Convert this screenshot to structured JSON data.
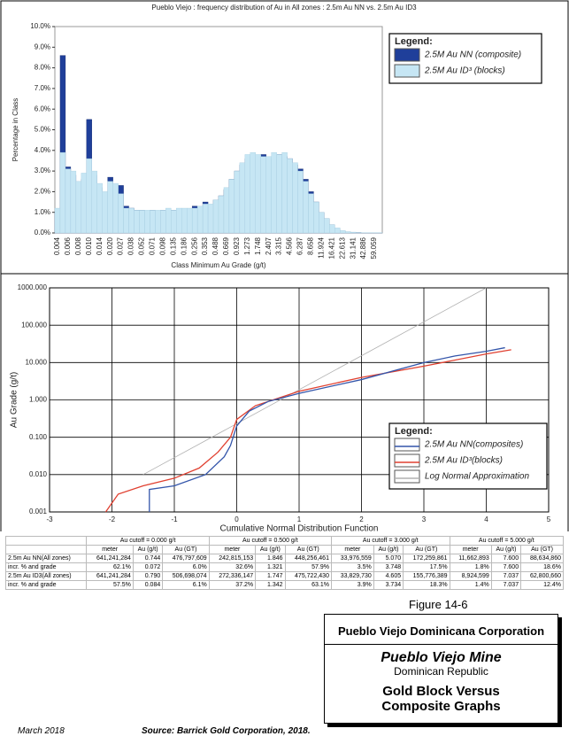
{
  "chart_data": [
    {
      "type": "bar",
      "title": "Pueblo Viejo   :   frequency distribution of Au in All zones   :  2.5m Au NN vs. 2.5m Au ID3",
      "legend_title": "Legend:",
      "x_label": "Class Minimum Au Grade (g/t)",
      "y_label": "Percentage in Class",
      "categories": [
        "0.004",
        null,
        "0.006",
        null,
        "0.008",
        null,
        "0.010",
        null,
        "0.014",
        null,
        "0.020",
        null,
        "0.027",
        null,
        "0.038",
        null,
        "0.052",
        null,
        "0.071",
        null,
        "0.098",
        null,
        "0.135",
        null,
        "0.186",
        null,
        "0.256",
        null,
        "0.353",
        null,
        "0.488",
        null,
        "0.669",
        null,
        "0.923",
        null,
        "1.273",
        null,
        "1.748",
        null,
        "2.407",
        null,
        "3.315",
        null,
        "4.566",
        null,
        "6.287",
        null,
        "8.658",
        null,
        "11.924",
        null,
        "16.421",
        null,
        "22.613",
        null,
        "31.141",
        null,
        "42.886",
        null,
        "59.059",
        null
      ],
      "series": [
        {
          "name": "2.5M Au NN (composite)",
          "color": "#1f3f9a",
          "values": [
            1.0,
            8.6,
            3.2,
            2.8,
            2.3,
            2.6,
            5.5,
            2.8,
            2.2,
            1.8,
            2.7,
            2.0,
            2.3,
            1.3,
            1.2,
            1.1,
            1.1,
            1.0,
            1.1,
            1.0,
            1.1,
            1.1,
            1.1,
            1.1,
            1.1,
            1.1,
            1.3,
            1.2,
            1.5,
            1.3,
            1.6,
            1.8,
            2.1,
            2.6,
            3.0,
            3.3,
            3.6,
            3.7,
            3.5,
            3.8,
            3.4,
            3.6,
            3.8,
            3.7,
            3.6,
            3.3,
            3.1,
            2.6,
            2.0,
            1.5,
            1.0,
            0.7,
            0.4,
            0.2,
            0.1,
            0.05,
            0.03,
            0.02,
            0.01,
            0.01,
            0.01,
            0.01
          ]
        },
        {
          "name": "2.5M Au ID³ (blocks)",
          "color": "#c6e6f4",
          "values": [
            1.2,
            3.9,
            3.1,
            3.0,
            2.5,
            2.9,
            3.6,
            3.0,
            2.4,
            2.0,
            2.5,
            2.4,
            1.9,
            1.2,
            1.2,
            1.1,
            1.1,
            1.1,
            1.1,
            1.1,
            1.1,
            1.2,
            1.1,
            1.2,
            1.2,
            1.2,
            1.2,
            1.3,
            1.4,
            1.4,
            1.6,
            1.8,
            2.2,
            2.6,
            3.0,
            3.4,
            3.8,
            3.9,
            3.8,
            3.7,
            3.7,
            3.9,
            3.8,
            3.9,
            3.6,
            3.4,
            3.0,
            2.5,
            1.9,
            1.5,
            1.0,
            0.7,
            0.4,
            0.25,
            0.12,
            0.06,
            0.04,
            0.02,
            0.01,
            0.01,
            0.01,
            0.01
          ]
        }
      ],
      "ylim": [
        0,
        10
      ],
      "yticks": [
        {
          "value": 0,
          "label": "0.0%"
        },
        {
          "value": 1,
          "label": "1.0%"
        },
        {
          "value": 2,
          "label": "2.0%"
        },
        {
          "value": 3,
          "label": "3.0%"
        },
        {
          "value": 4,
          "label": "4.0%"
        },
        {
          "value": 5,
          "label": "5.0%"
        },
        {
          "value": 6,
          "label": "6.0%"
        },
        {
          "value": 7,
          "label": "7.0%"
        },
        {
          "value": 8,
          "label": "8.0%"
        },
        {
          "value": 9,
          "label": "9.0%"
        },
        {
          "value": 10,
          "label": "10.0%"
        }
      ],
      "legend": "upper right"
    },
    {
      "type": "line",
      "legend_title": "Legend:",
      "x_label": "Cumulative Normal Distribution Function",
      "y_label": "Au Grade (g/t)",
      "log_y": true,
      "grid": true,
      "series": [
        {
          "name": "2.5M Au NN(composites)",
          "color": "#3355aa",
          "x": [
            -1.4,
            -1.4,
            -1.0,
            -0.5,
            -0.2,
            -0.1,
            0,
            0.2,
            0.5,
            1,
            2,
            3,
            3.5,
            4,
            4.3
          ],
          "values": [
            0.001,
            0.004,
            0.005,
            0.01,
            0.03,
            0.06,
            0.2,
            0.5,
            0.9,
            1.5,
            3.5,
            10,
            15,
            20,
            25
          ]
        },
        {
          "name": "2.5M Au ID³(blocks)",
          "color": "#e04030",
          "x": [
            -2.1,
            -1.9,
            -1.5,
            -1.0,
            -0.6,
            -0.3,
            -0.1,
            0,
            0.3,
            1,
            2,
            3,
            4,
            4.4
          ],
          "values": [
            0.001,
            0.003,
            0.005,
            0.008,
            0.015,
            0.04,
            0.1,
            0.3,
            0.7,
            1.7,
            4,
            8,
            17,
            22
          ]
        },
        {
          "name": "Log Normal Approximation",
          "color": "#b0b0b0",
          "x": [
            -1.5,
            4
          ],
          "values": [
            0.01,
            1000
          ]
        }
      ],
      "xlim": [
        -3,
        5
      ],
      "xticks": [
        -3,
        -2,
        -1,
        0,
        1,
        2,
        3,
        4,
        5
      ],
      "ylim": [
        0.001,
        1000
      ],
      "yticks": [
        {
          "value": 0.001,
          "label": "0.001"
        },
        {
          "value": 0.01,
          "label": "0.010"
        },
        {
          "value": 0.1,
          "label": "0.100"
        },
        {
          "value": 1,
          "label": "1.000"
        },
        {
          "value": 10,
          "label": "10.000"
        },
        {
          "value": 100,
          "label": "100.000"
        },
        {
          "value": 1000,
          "label": "1000.000"
        }
      ],
      "legend": "lower right"
    }
  ],
  "table": {
    "groups": [
      "Au cutoff = 0.000 g/t",
      "Au cutoff = 0.500 g/t",
      "Au cutoff = 3.000 g/t",
      "Au cutoff = 5.000 g/t"
    ],
    "subheaders": [
      "meter",
      "Au (g/t)",
      "Au (GT)"
    ],
    "rows": [
      [
        "2.5m Au NN(All zones)",
        "641,241,284",
        "0.744",
        "476,797,609",
        "242,815,153",
        "1.846",
        "448,256,461",
        "33,976,559",
        "5.070",
        "172,259,861",
        "11,662,893",
        "7.600",
        "88,634,860"
      ],
      [
        "incr. % and grade",
        "62.1%",
        "0.072",
        "6.0%",
        "32.6%",
        "1.321",
        "57.9%",
        "3.5%",
        "3.748",
        "17.5%",
        "1.8%",
        "7.600",
        "18.6%"
      ],
      [
        "2.5m Au ID3(All zones)",
        "641,241,284",
        "0.790",
        "506,698,074",
        "272,336,147",
        "1.747",
        "475,722,430",
        "33,829,730",
        "4.605",
        "155,776,389",
        "8,924,599",
        "7.037",
        "62,800,660"
      ],
      [
        "incr. % and grade",
        "57.5%",
        "0.084",
        "6.1%",
        "37.2%",
        "1.342",
        "63.1%",
        "3.9%",
        "3.734",
        "18.3%",
        "1.4%",
        "7.037",
        "12.4%"
      ]
    ]
  },
  "figure_label": "Figure 14-6",
  "title_block": {
    "company": "Pueblo Viejo Dominicana Corporation",
    "mine": "Pueblo Viejo Mine",
    "country": "Dominican Republic",
    "line1": "Gold Block Versus",
    "line2": "Composite Graphs"
  },
  "footer": {
    "date": "March 2018",
    "source": "Source: Barrick Gold Corporation, 2018."
  }
}
